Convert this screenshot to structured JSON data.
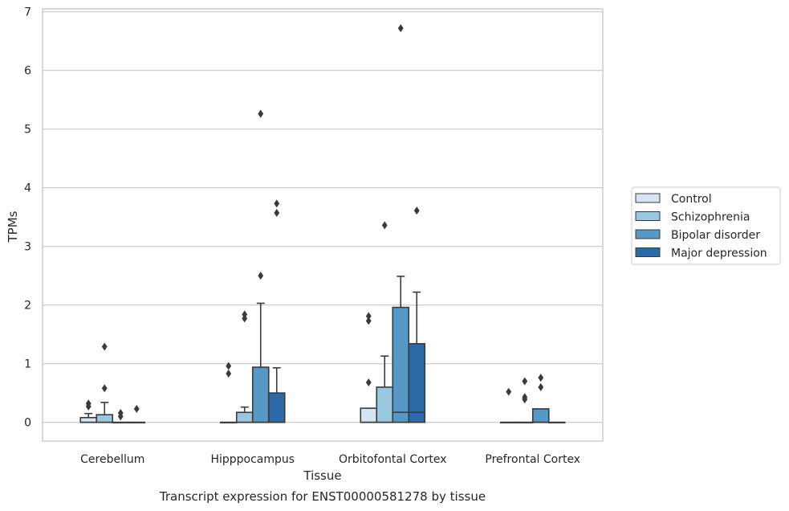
{
  "chart_data": {
    "type": "box",
    "title": "",
    "caption": "Transcript expression for ENST00000581278 by tissue",
    "xlabel": "Tissue",
    "ylabel": "TPMs",
    "ylim": [
      -0.32,
      7.05
    ],
    "yticks": [
      0,
      1,
      2,
      3,
      4,
      5,
      6,
      7
    ],
    "grid": "horizontal",
    "legend_position": "right",
    "categories": [
      "Cerebellum",
      "Hipppocampus",
      "Orbitofontal Cortex",
      "Prefrontal Cortex"
    ],
    "series": [
      {
        "name": "Control",
        "color": "#d4e4f2",
        "boxes": [
          {
            "q1": 0,
            "median": 0,
            "q3": 0.08,
            "whisker_low": 0,
            "whisker_high": 0.15,
            "outliers": [
              0.27,
              0.32
            ]
          },
          {
            "q1": 0,
            "median": 0,
            "q3": 0,
            "whisker_low": 0,
            "whisker_high": 0,
            "outliers": [
              0.83,
              0.96
            ]
          },
          {
            "q1": 0,
            "median": 0,
            "q3": 0.24,
            "whisker_low": 0,
            "whisker_high": 0.24,
            "outliers": [
              0.68,
              1.73,
              1.81
            ]
          },
          {
            "q1": 0,
            "median": 0,
            "q3": 0,
            "whisker_low": 0,
            "whisker_high": 0,
            "outliers": [
              0.52
            ]
          }
        ]
      },
      {
        "name": "Schizophrenia",
        "color": "#9ac7e0",
        "boxes": [
          {
            "q1": 0,
            "median": 0,
            "q3": 0.13,
            "whisker_low": 0,
            "whisker_high": 0.34,
            "outliers": [
              0.58,
              1.29
            ]
          },
          {
            "q1": 0,
            "median": 0,
            "q3": 0.17,
            "whisker_low": 0,
            "whisker_high": 0.26,
            "outliers": [
              1.77,
              1.84
            ]
          },
          {
            "q1": 0,
            "median": 0,
            "q3": 0.6,
            "whisker_low": 0,
            "whisker_high": 1.13,
            "outliers": [
              3.36
            ]
          },
          {
            "q1": 0,
            "median": 0,
            "q3": 0,
            "whisker_low": 0,
            "whisker_high": 0,
            "outliers": [
              0.39,
              0.43,
              0.7
            ]
          }
        ]
      },
      {
        "name": "Bipolar disorder",
        "color": "#5698c6",
        "boxes": [
          {
            "q1": 0,
            "median": 0,
            "q3": 0,
            "whisker_low": 0,
            "whisker_high": 0,
            "outliers": [
              0.1,
              0.16
            ]
          },
          {
            "q1": 0,
            "median": 0,
            "q3": 0.94,
            "whisker_low": 0,
            "whisker_high": 2.03,
            "outliers": [
              2.5,
              5.26
            ]
          },
          {
            "q1": 0,
            "median": 0.17,
            "q3": 1.96,
            "whisker_low": 0,
            "whisker_high": 2.49,
            "outliers": [
              6.72
            ]
          },
          {
            "q1": 0,
            "median": 0,
            "q3": 0.23,
            "whisker_low": 0,
            "whisker_high": 0.23,
            "outliers": [
              0.6,
              0.76
            ]
          }
        ]
      },
      {
        "name": "Major depression",
        "color": "#2b6aa6",
        "boxes": [
          {
            "q1": 0,
            "median": 0,
            "q3": 0,
            "whisker_low": 0,
            "whisker_high": 0,
            "outliers": [
              0.23
            ]
          },
          {
            "q1": 0,
            "median": 0,
            "q3": 0.5,
            "whisker_low": 0,
            "whisker_high": 0.93,
            "outliers": [
              3.57,
              3.73
            ]
          },
          {
            "q1": 0,
            "median": 0.17,
            "q3": 1.34,
            "whisker_low": 0,
            "whisker_high": 2.22,
            "outliers": [
              3.61
            ]
          },
          {
            "q1": 0,
            "median": 0,
            "q3": 0,
            "whisker_low": 0,
            "whisker_high": 0,
            "outliers": []
          }
        ]
      }
    ]
  }
}
